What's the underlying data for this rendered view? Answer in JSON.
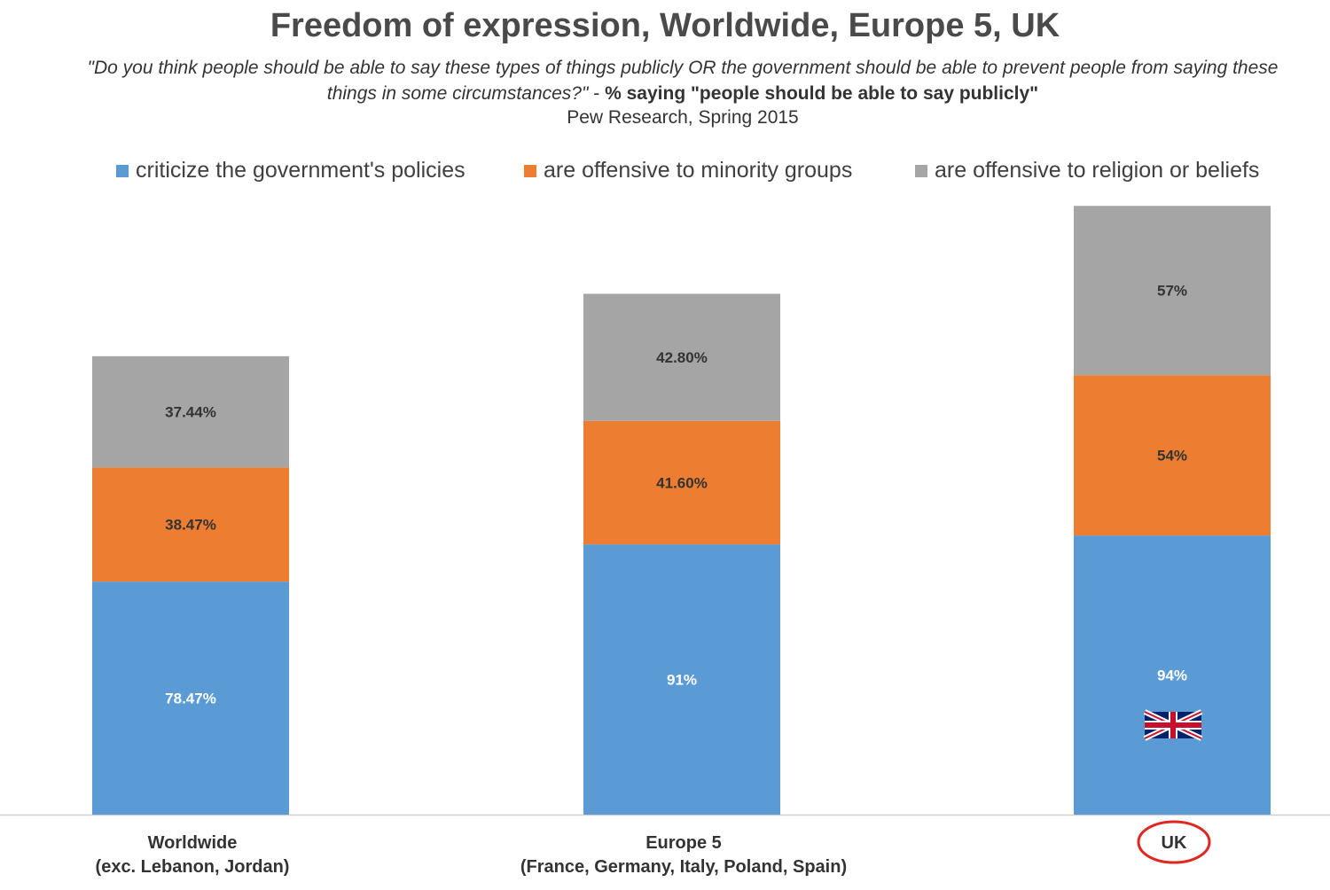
{
  "chart_data": {
    "type": "bar",
    "stacked": true,
    "title": "Freedom of expression, Worldwide, Europe 5, UK",
    "subtitle_italic": "\"Do you think people should be able to say these types of things publicly OR the government should be able to prevent people from saying these things in some circumstances?\"",
    "subtitle_separator": " - ",
    "subtitle_bold": "% saying \"people should be able to say publicly\"",
    "source": "Pew Research, Spring 2015",
    "xlabel": "",
    "ylabel": "",
    "legend_position": "top",
    "categories": [
      {
        "name": "Worldwide",
        "sub": "(exc. Lebanon, Jordan)"
      },
      {
        "name": "Europe 5",
        "sub": "(France, Germany, Italy, Poland, Spain)"
      },
      {
        "name": "UK",
        "sub": ""
      }
    ],
    "series": [
      {
        "name": "criticize the government's policies",
        "color": "#5b9bd5",
        "label_color": "#ffffff",
        "values": [
          78.47,
          91,
          94
        ],
        "labels": [
          "78.47%",
          "91%",
          "94%"
        ]
      },
      {
        "name": "are offensive to minority groups",
        "color": "#ed7d31",
        "label_color": "#333333",
        "values": [
          38.47,
          41.6,
          54
        ],
        "labels": [
          "38.47%",
          "41.60%",
          "54%"
        ]
      },
      {
        "name": "are offensive to religion or beliefs",
        "color": "#a5a5a5",
        "label_color": "#333333",
        "values": [
          37.44,
          42.8,
          57
        ],
        "labels": [
          "37.44%",
          "42.80%",
          "57%"
        ]
      }
    ],
    "highlight_category": "UK",
    "highlight_color": "#e0271f",
    "flag_category": "UK"
  }
}
